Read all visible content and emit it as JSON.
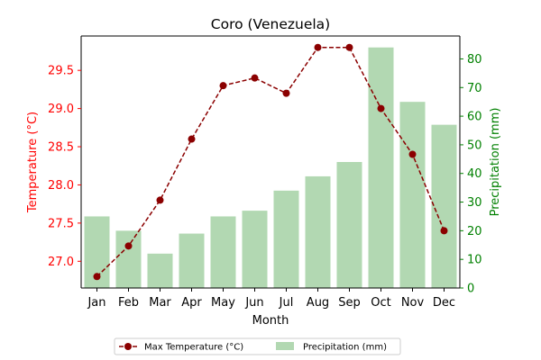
{
  "chart_data": {
    "type": "bar+line",
    "title": "Coro (Venezuela)",
    "xlabel": "Month",
    "categories": [
      "Jan",
      "Feb",
      "Mar",
      "Apr",
      "May",
      "Jun",
      "Jul",
      "Aug",
      "Sep",
      "Oct",
      "Nov",
      "Dec"
    ],
    "series": [
      {
        "name": "Max Temperature (°C)",
        "type": "line",
        "axis": "left",
        "values": [
          26.8,
          27.2,
          27.8,
          28.6,
          29.3,
          29.4,
          29.2,
          29.8,
          29.8,
          29.0,
          28.4,
          27.4
        ]
      },
      {
        "name": "Precipitation (mm)",
        "type": "bar",
        "axis": "right",
        "values": [
          25,
          20,
          12,
          19,
          25,
          27,
          34,
          39,
          44,
          84,
          65,
          57
        ]
      }
    ],
    "y_left": {
      "label": "Temperature (°C)",
      "lim": [
        26.65,
        29.95
      ],
      "ticks": [
        27.0,
        27.5,
        28.0,
        28.5,
        29.0,
        29.5
      ],
      "tick_labels": [
        "27.0",
        "27.5",
        "28.0",
        "28.5",
        "29.0",
        "29.5"
      ]
    },
    "y_right": {
      "label": "Precipitation (mm)",
      "lim": [
        0,
        88
      ],
      "ticks": [
        0,
        10,
        20,
        30,
        40,
        50,
        60,
        70,
        80
      ],
      "tick_labels": [
        "0",
        "10",
        "20",
        "30",
        "40",
        "50",
        "60",
        "70",
        "80"
      ]
    },
    "grid": false,
    "legend_position": "bottom-center",
    "colors": {
      "temperature": "#8b0000",
      "temperature_axis": "#ff0000",
      "precipitation": "#b2d8b2",
      "precipitation_axis": "#008000"
    }
  }
}
